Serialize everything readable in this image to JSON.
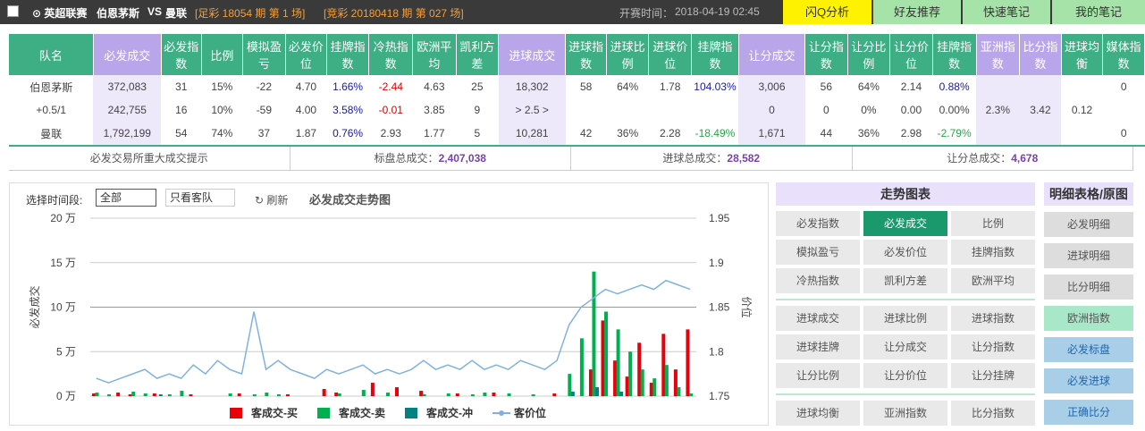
{
  "top_bar": {
    "league": "⊙ 英超联赛",
    "home": "伯恩茅斯",
    "vs": "VS",
    "away": "曼联",
    "issue1": "[足彩 18054 期 第 1 场]",
    "issue2": "[竞彩 20180418 期 第 027 场]",
    "time_label": "开赛时间：",
    "time": "2018-04-19 02:45",
    "buttons": [
      "闪Q分析",
      "好友推荐",
      "快速笔记",
      "我的笔记"
    ]
  },
  "table": {
    "header": [
      "队名",
      "必发成交",
      "必发指数",
      "比例",
      "模拟盈亏",
      "必发价位",
      "挂牌指数",
      "冷热指数",
      "欧洲平均",
      "凯利方差",
      "进球成交",
      "进球指数",
      "进球比例",
      "进球价位",
      "挂牌指数",
      "让分成交",
      "让分指数",
      "让分比例",
      "让分价位",
      "挂牌指数",
      "亚洲指数",
      "比分指数",
      "进球均衡",
      "媒体指数"
    ],
    "rows": [
      [
        "伯恩茅斯",
        "372,083",
        "31",
        "15%",
        "-22",
        "4.70",
        "1.66%",
        "-2.44",
        "4.63",
        "25",
        "18,302",
        "58",
        "64%",
        "1.78",
        "104.03%",
        "3,006",
        "56",
        "64%",
        "2.14",
        "0.88%",
        null,
        null,
        null,
        "0"
      ],
      [
        "+0.5/1",
        "242,755",
        "16",
        "10%",
        "-59",
        "4.00",
        "3.58%",
        "-0.01",
        "3.85",
        "9",
        "> 2.5 >",
        null,
        null,
        null,
        null,
        "0",
        "0",
        "0%",
        "0.00",
        "0.00%",
        "2.3%",
        "3.42",
        "0.12",
        null
      ],
      [
        "曼联",
        "1,792,199",
        "54",
        "74%",
        "37",
        "1.87",
        "0.76%",
        "2.93",
        "1.77",
        "5",
        "10,281",
        "42",
        "36%",
        "2.28",
        "-18.49%",
        "1,671",
        "44",
        "36%",
        "2.98",
        "-2.79%",
        null,
        null,
        null,
        "0"
      ]
    ]
  },
  "summary": [
    {
      "label": "必发交易所重大成交提示"
    },
    {
      "label": "标盘总成交：",
      "value": "2,407,038"
    },
    {
      "label": "进球总成交：",
      "value": "28,582"
    },
    {
      "label": "让分总成交：",
      "value": "4,678"
    }
  ],
  "controls": {
    "period_label": "选择时间段:",
    "period": "全部",
    "filter": "只看客队",
    "refresh": "刷新"
  },
  "chart_data": {
    "type": "bar",
    "title": "必发成交走势图",
    "y_label": "必发成交",
    "y2_label": "价位",
    "ylim": [
      0,
      200000
    ],
    "yticks": [
      {
        "value": 0,
        "label": "0 万"
      },
      {
        "value": 50000,
        "label": "5 万"
      },
      {
        "value": 100000,
        "label": "10 万"
      },
      {
        "value": 150000,
        "label": "15 万"
      },
      {
        "value": 200000,
        "label": "20 万"
      }
    ],
    "y2lim": [
      1.75,
      1.95
    ],
    "y2ticks": [
      1.75,
      1.8,
      1.85,
      1.9,
      1.95
    ],
    "grid": true,
    "series": [
      {
        "name": "客成交-买",
        "color": "#e8000b",
        "values": [
          3000,
          0,
          4000,
          2000,
          0,
          3000,
          0,
          0,
          2000,
          0,
          0,
          0,
          3000,
          0,
          0,
          0,
          2000,
          0,
          0,
          8000,
          4000,
          0,
          0,
          15000,
          0,
          10000,
          0,
          6000,
          0,
          0,
          3000,
          0,
          0,
          4000,
          0,
          0,
          0,
          0,
          3000,
          0,
          0,
          30000,
          85000,
          40000,
          22000,
          60000,
          15000,
          70000,
          30000,
          75000
        ]
      },
      {
        "name": "客成交-卖",
        "color": "#00b050",
        "values": [
          4000,
          2000,
          0,
          5000,
          3000,
          0,
          2000,
          6000,
          0,
          0,
          0,
          3000,
          0,
          2000,
          4000,
          2000,
          0,
          0,
          0,
          0,
          3000,
          0,
          7000,
          0,
          4000,
          0,
          0,
          2000,
          0,
          3000,
          0,
          2000,
          4000,
          0,
          3000,
          0,
          2000,
          0,
          0,
          25000,
          65000,
          140000,
          95000,
          75000,
          50000,
          30000,
          20000,
          35000,
          10000,
          3000
        ]
      },
      {
        "name": "客成交-冲",
        "color": "#008080",
        "values": [
          0,
          0,
          0,
          0,
          0,
          2000,
          0,
          0,
          0,
          0,
          0,
          0,
          0,
          0,
          0,
          0,
          0,
          0,
          0,
          0,
          0,
          0,
          0,
          0,
          0,
          0,
          0,
          0,
          0,
          0,
          0,
          0,
          0,
          0,
          0,
          0,
          0,
          0,
          0,
          5000,
          0,
          10000,
          0,
          5000,
          0,
          0,
          0,
          0,
          0,
          0
        ]
      },
      {
        "name": "客价位",
        "color": "#7fb2e0",
        "axis": "y2",
        "values": [
          1.77,
          1.765,
          1.77,
          1.775,
          1.78,
          1.77,
          1.775,
          1.77,
          1.785,
          1.775,
          1.79,
          1.78,
          1.775,
          1.845,
          1.78,
          1.79,
          1.78,
          1.775,
          1.77,
          1.78,
          1.775,
          1.78,
          1.785,
          1.775,
          1.78,
          1.775,
          1.78,
          1.79,
          1.78,
          1.785,
          1.78,
          1.79,
          1.78,
          1.785,
          1.78,
          1.79,
          1.785,
          1.78,
          1.79,
          1.83,
          1.85,
          1.86,
          1.87,
          1.865,
          1.87,
          1.875,
          1.87,
          1.88,
          1.875,
          1.87
        ]
      }
    ]
  },
  "trend_panel": {
    "title": "走势图表",
    "groups": [
      [
        "必发指数",
        "必发成交",
        "比例",
        "模拟盈亏",
        "必发价位",
        "挂牌指数",
        "冷热指数",
        "凯利方差",
        "欧洲平均"
      ],
      [
        "进球成交",
        "进球比例",
        "进球指数",
        "进球挂牌",
        "让分成交",
        "让分指数",
        "让分比例",
        "让分价位",
        "让分挂牌"
      ],
      [
        "进球均衡",
        "亚洲指数",
        "比分指数"
      ]
    ]
  },
  "detail_panel": {
    "title": "明细表格/原图",
    "buttons": [
      "必发明细",
      "进球明细",
      "比分明细",
      "欧洲指数",
      "必发标盘",
      "必发进球",
      "正确比分"
    ]
  }
}
